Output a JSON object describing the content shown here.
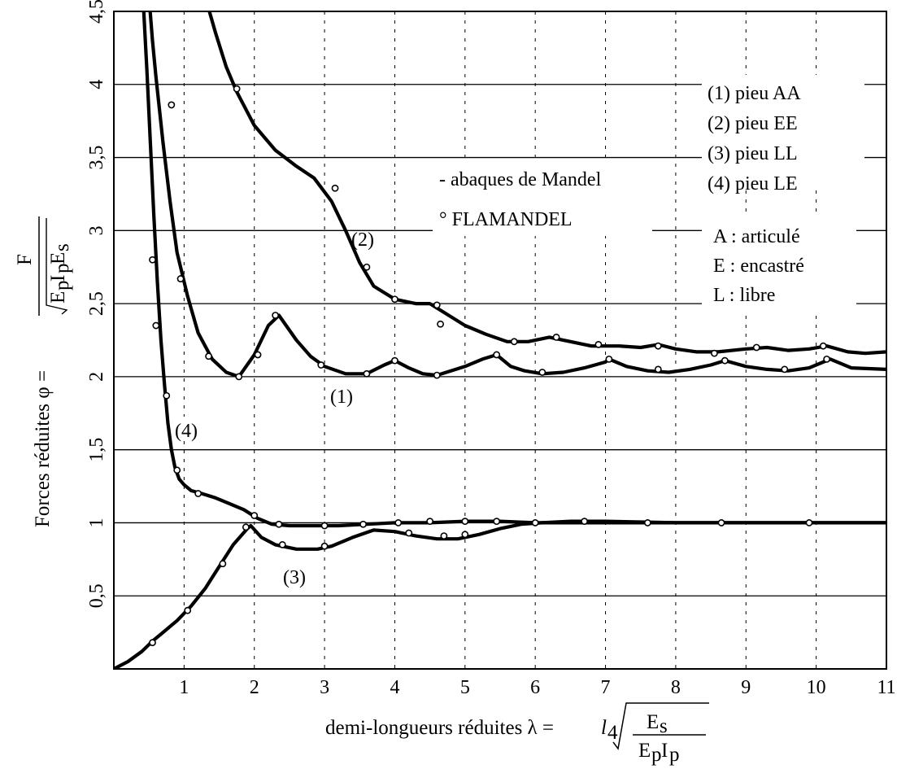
{
  "chart_data": {
    "type": "line",
    "x_ticks": [
      "1",
      "2",
      "3",
      "4",
      "5",
      "6",
      "7",
      "8",
      "9",
      "10",
      "11"
    ],
    "y_ticks": [
      "0,5",
      "1",
      "1,5",
      "2",
      "2,5",
      "3",
      "3,5",
      "4",
      "4,5"
    ],
    "xlim": [
      0,
      11
    ],
    "ylim": [
      0,
      4.5
    ],
    "grid": true,
    "ylabel": "Forces réduites φ =",
    "ylabel_fraction": {
      "numerator": "F",
      "denominator_e1": "E",
      "denominator_p1": "p",
      "denominator_i": "I",
      "denominator_p2": "p",
      "denominator_e2": "E",
      "denominator_s": "s"
    },
    "xlabel": "demi-longueurs réduites λ =",
    "xlabel_formula": {
      "l": "l",
      "sub4": "4",
      "num_e": "E",
      "num_s": "s",
      "den_e": "E",
      "den_p1": "p",
      "den_i": "I",
      "den_p2": "p"
    },
    "legend": [
      "(1) pieu AA",
      "(2) pieu EE",
      "(3) pieu LL",
      "(4) pieu LE"
    ],
    "key": [
      "A : articulé",
      "E : encastré",
      "L : libre"
    ],
    "method_notes": [
      "- abaques de Mandel",
      "° FLAMANDEL"
    ],
    "curve_labels": [
      "(1)",
      "(2)",
      "(3)",
      "(4)"
    ],
    "series": [
      {
        "name": "(1) pieu AA",
        "x": [
          0.5,
          0.55,
          0.6,
          0.7,
          0.8,
          0.9,
          1.05,
          1.2,
          1.4,
          1.6,
          1.78,
          2.0,
          2.2,
          2.35,
          2.6,
          2.8,
          3.0,
          3.3,
          3.6,
          3.85,
          4.0,
          4.2,
          4.4,
          4.6,
          4.8,
          5.0,
          5.25,
          5.45,
          5.65,
          5.85,
          6.1,
          6.4,
          6.7,
          7.0,
          7.05,
          7.3,
          7.6,
          7.9,
          8.2,
          8.5,
          8.7,
          9.0,
          9.3,
          9.6,
          9.9,
          10.2,
          10.5,
          11.0
        ],
        "y": [
          4.6,
          4.3,
          4.05,
          3.6,
          3.2,
          2.85,
          2.55,
          2.3,
          2.12,
          2.03,
          2.0,
          2.15,
          2.35,
          2.42,
          2.25,
          2.14,
          2.07,
          2.02,
          2.02,
          2.08,
          2.11,
          2.06,
          2.02,
          2.01,
          2.04,
          2.07,
          2.12,
          2.15,
          2.07,
          2.04,
          2.02,
          2.03,
          2.06,
          2.1,
          2.12,
          2.07,
          2.04,
          2.03,
          2.05,
          2.08,
          2.11,
          2.07,
          2.05,
          2.04,
          2.06,
          2.12,
          2.06,
          2.05
        ],
        "markers_x": [
          0.82,
          0.95,
          1.35,
          1.78,
          2.05,
          2.3,
          2.95,
          3.6,
          4.0,
          4.6,
          5.45,
          6.1,
          7.05,
          7.75,
          8.7,
          9.55,
          10.15
        ],
        "markers_y": [
          3.86,
          2.67,
          2.14,
          2.0,
          2.15,
          2.42,
          2.08,
          2.02,
          2.11,
          2.01,
          2.15,
          2.03,
          2.12,
          2.05,
          2.11,
          2.05,
          2.12
        ]
      },
      {
        "name": "(2) pieu EE",
        "x": [
          1.3,
          1.45,
          1.6,
          1.75,
          2.0,
          2.3,
          2.6,
          2.85,
          3.1,
          3.3,
          3.5,
          3.7,
          4.0,
          4.3,
          4.5,
          4.7,
          5.0,
          5.3,
          5.6,
          5.9,
          6.2,
          6.5,
          6.8,
          7.2,
          7.5,
          7.75,
          8.0,
          8.3,
          8.6,
          9.0,
          9.3,
          9.6,
          9.9,
          10.15,
          10.45,
          10.7,
          11.0
        ],
        "y": [
          4.6,
          4.35,
          4.12,
          3.95,
          3.72,
          3.55,
          3.44,
          3.36,
          3.2,
          3.0,
          2.78,
          2.62,
          2.53,
          2.5,
          2.5,
          2.44,
          2.35,
          2.29,
          2.24,
          2.24,
          2.27,
          2.24,
          2.21,
          2.21,
          2.2,
          2.22,
          2.19,
          2.17,
          2.17,
          2.19,
          2.2,
          2.18,
          2.19,
          2.21,
          2.17,
          2.16,
          2.17
        ],
        "markers_x": [
          1.75,
          3.15,
          3.6,
          4.0,
          4.6,
          4.65,
          5.7,
          6.3,
          6.9,
          7.75,
          8.55,
          9.15,
          10.1
        ],
        "markers_y": [
          3.97,
          3.29,
          2.75,
          2.53,
          2.49,
          2.36,
          2.24,
          2.27,
          2.22,
          2.21,
          2.16,
          2.2,
          2.21
        ]
      },
      {
        "name": "(3) pieu LL",
        "x": [
          0.0,
          0.2,
          0.4,
          0.55,
          0.7,
          0.9,
          1.1,
          1.3,
          1.5,
          1.7,
          1.9,
          1.95,
          2.1,
          2.3,
          2.6,
          2.9,
          3.1,
          3.4,
          3.7,
          4.0,
          4.3,
          4.6,
          4.9,
          5.2,
          5.5,
          5.8,
          6.1,
          6.5,
          7.0,
          8.0,
          9.0,
          10.0,
          11.0
        ],
        "y": [
          0.0,
          0.05,
          0.12,
          0.19,
          0.25,
          0.33,
          0.43,
          0.55,
          0.7,
          0.85,
          0.96,
          0.98,
          0.9,
          0.85,
          0.82,
          0.82,
          0.84,
          0.9,
          0.95,
          0.94,
          0.91,
          0.89,
          0.89,
          0.92,
          0.96,
          0.99,
          1.0,
          1.01,
          1.01,
          1.0,
          1.0,
          1.0,
          1.0
        ],
        "markers_x": [
          0.55,
          1.05,
          1.55,
          1.88,
          2.4,
          3.0,
          4.2,
          4.7,
          5.0
        ],
        "markers_y": [
          0.18,
          0.4,
          0.72,
          0.97,
          0.85,
          0.84,
          0.93,
          0.91,
          0.92
        ]
      },
      {
        "name": "(4) pieu LE",
        "x": [
          0.42,
          0.47,
          0.52,
          0.57,
          0.62,
          0.67,
          0.72,
          0.77,
          0.82,
          0.87,
          0.93,
          1.0,
          1.1,
          1.25,
          1.45,
          1.65,
          1.85,
          2.05,
          2.25,
          2.5,
          2.8,
          3.2,
          3.6,
          4.0,
          4.5,
          5.0,
          5.5,
          6.0,
          7.0,
          8.0,
          9.0,
          10.0,
          11.0
        ],
        "y": [
          4.55,
          4.1,
          3.6,
          3.1,
          2.65,
          2.25,
          1.95,
          1.68,
          1.5,
          1.38,
          1.3,
          1.26,
          1.22,
          1.2,
          1.17,
          1.13,
          1.09,
          1.03,
          0.99,
          0.98,
          0.98,
          0.98,
          0.99,
          1.0,
          1.0,
          1.01,
          1.01,
          1.0,
          1.0,
          1.0,
          1.0,
          1.0,
          1.0
        ],
        "markers_x": [
          0.55,
          0.6,
          0.75,
          0.9,
          1.2,
          2.0,
          2.35,
          3.0,
          3.55,
          4.05,
          4.5,
          5.0,
          5.45,
          6.0,
          6.7,
          7.6,
          8.65,
          9.9
        ],
        "markers_y": [
          2.8,
          2.35,
          1.87,
          1.36,
          1.2,
          1.05,
          0.99,
          0.98,
          0.99,
          1.0,
          1.01,
          1.01,
          1.01,
          1.0,
          1.01,
          1.0,
          1.0,
          1.0
        ]
      }
    ]
  }
}
